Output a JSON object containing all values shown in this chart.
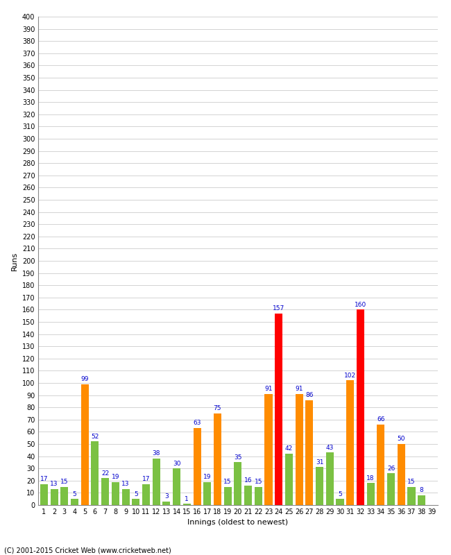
{
  "xlabel": "Innings (oldest to newest)",
  "ylabel": "Runs",
  "footer": "(C) 2001-2015 Cricket Web (www.cricketweb.net)",
  "ylim": [
    0,
    400
  ],
  "yticks": [
    0,
    10,
    20,
    30,
    40,
    50,
    60,
    70,
    80,
    90,
    100,
    110,
    120,
    130,
    140,
    150,
    160,
    170,
    180,
    190,
    200,
    210,
    220,
    230,
    240,
    250,
    260,
    270,
    280,
    290,
    300,
    310,
    320,
    330,
    340,
    350,
    360,
    370,
    380,
    390,
    400
  ],
  "innings": [
    1,
    2,
    3,
    4,
    5,
    6,
    7,
    8,
    9,
    10,
    11,
    12,
    13,
    14,
    15,
    16,
    17,
    18,
    19,
    20,
    21,
    22,
    23,
    24,
    25,
    26,
    27,
    28,
    29,
    30,
    31,
    32,
    33,
    34,
    35,
    36,
    37,
    38,
    39
  ],
  "scores": [
    17,
    13,
    15,
    5,
    99,
    52,
    22,
    19,
    13,
    5,
    17,
    38,
    3,
    30,
    1,
    63,
    19,
    75,
    15,
    35,
    16,
    15,
    91,
    157,
    42,
    91,
    86,
    31,
    43,
    5,
    102,
    160,
    18,
    66,
    26,
    50,
    15,
    8,
    null
  ],
  "bar_colors": [
    "#7bc143",
    "#7bc143",
    "#7bc143",
    "#7bc143",
    "#ff8c00",
    "#7bc143",
    "#7bc143",
    "#7bc143",
    "#7bc143",
    "#7bc143",
    "#7bc143",
    "#7bc143",
    "#7bc143",
    "#7bc143",
    "#7bc143",
    "#ff8c00",
    "#7bc143",
    "#ff8c00",
    "#7bc143",
    "#7bc143",
    "#7bc143",
    "#7bc143",
    "#ff8c00",
    "#ff0000",
    "#7bc143",
    "#ff8c00",
    "#ff8c00",
    "#7bc143",
    "#7bc143",
    "#7bc143",
    "#ff8c00",
    "#ff0000",
    "#7bc143",
    "#ff8c00",
    "#7bc143",
    "#ff8c00",
    "#7bc143",
    "#7bc143",
    "#7bc143"
  ],
  "background_color": "#ffffff",
  "grid_color": "#cccccc",
  "label_color": "#0000cc",
  "axis_color": "#888888",
  "bar_width": 0.75,
  "label_fontsize": 6.5,
  "tick_fontsize": 7,
  "axis_label_fontsize": 8,
  "footer_fontsize": 7
}
